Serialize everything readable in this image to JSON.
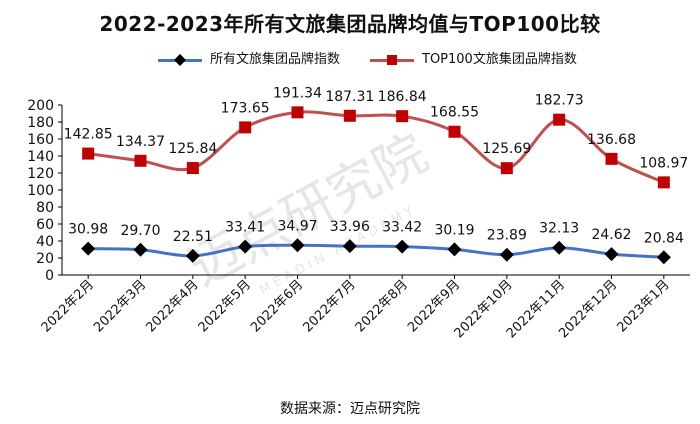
{
  "title": "2022-2023年所有文旅集团品牌均值与TOP100比较",
  "source": "数据来源：迈点研究院",
  "watermark": {
    "text": "迈点研究院",
    "sub": "MEADIN ACADEMY"
  },
  "colors": {
    "all_line": "#4472C4",
    "all_marker": "#000000",
    "top_line": "#C0504D",
    "top_marker": "#C00000"
  },
  "chart_data": {
    "type": "line",
    "categories": [
      "2022年2月",
      "2022年3月",
      "2022年4月",
      "2022年5月",
      "2022年6月",
      "2022年7月",
      "2022年8月",
      "2022年9月",
      "2022年10月",
      "2022年11月",
      "2022年12月",
      "2023年1月"
    ],
    "ylim": [
      0,
      200
    ],
    "yticks": [
      0,
      20,
      40,
      60,
      80,
      100,
      120,
      140,
      160,
      180,
      200
    ],
    "grid": false,
    "legend_position": "top",
    "series": [
      {
        "name": "所有文旅集团品牌指数",
        "marker": "diamond",
        "values": [
          30.98,
          29.7,
          22.51,
          33.41,
          34.97,
          33.96,
          33.42,
          30.19,
          23.89,
          32.13,
          24.62,
          20.84
        ],
        "labels": [
          "30.98",
          "29.70",
          "22.51",
          "33.41",
          "34.97",
          "33.96",
          "33.42",
          "30.19",
          "23.89",
          "32.13",
          "24.62",
          "20.84"
        ]
      },
      {
        "name": "TOP100文旅集团品牌指数",
        "marker": "square",
        "values": [
          142.85,
          134.37,
          125.84,
          173.65,
          191.34,
          187.31,
          186.84,
          168.55,
          125.69,
          182.73,
          136.68,
          108.97
        ],
        "labels": [
          "142.85",
          "134.37",
          "125.84",
          "173.65",
          "191.34",
          "187.31",
          "186.84",
          "168.55",
          "125.69",
          "182.73",
          "136.68",
          "108.97"
        ]
      }
    ]
  }
}
